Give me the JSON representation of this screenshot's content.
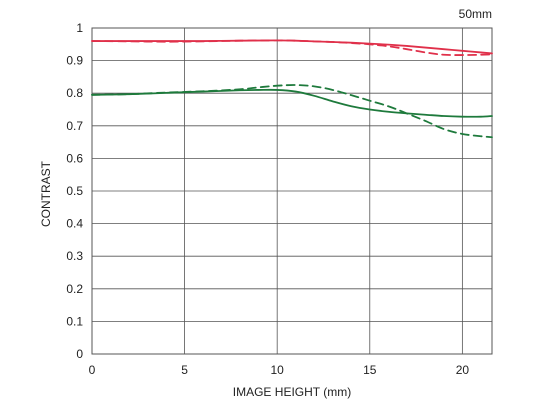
{
  "chart_data": {
    "type": "line",
    "title": "50mm",
    "xlabel": "IMAGE HEIGHT (mm)",
    "ylabel": "CONTRAST",
    "xlim": [
      0,
      21.6
    ],
    "ylim": [
      0,
      1
    ],
    "xticks": [
      0,
      5,
      10,
      15,
      20
    ],
    "yticks": [
      0,
      0.1,
      0.2,
      0.3,
      0.4,
      0.5,
      0.6,
      0.7,
      0.8,
      0.9,
      1
    ],
    "ytick_labels": [
      "0",
      "0.1",
      "0.2",
      "0.3",
      "0.4",
      "0.5",
      "0.6",
      "0.7",
      "0.8",
      "0.9",
      "1"
    ],
    "grid": true,
    "legend": "none",
    "series": [
      {
        "color": "#e0304a",
        "dash": "solid",
        "x": [
          0,
          2,
          4,
          6,
          8,
          10,
          11,
          12,
          13,
          14,
          15,
          16,
          17,
          18,
          19,
          20,
          21,
          21.6
        ],
        "y": [
          0.96,
          0.96,
          0.96,
          0.96,
          0.961,
          0.962,
          0.961,
          0.959,
          0.957,
          0.955,
          0.952,
          0.949,
          0.945,
          0.94,
          0.935,
          0.93,
          0.925,
          0.922
        ]
      },
      {
        "color": "#e0304a",
        "dash": "dashed",
        "x": [
          0,
          2,
          4,
          6,
          8,
          10,
          11,
          12,
          13,
          14,
          15,
          16,
          17,
          18,
          19,
          20,
          21,
          21.6
        ],
        "y": [
          0.96,
          0.959,
          0.958,
          0.959,
          0.961,
          0.962,
          0.961,
          0.959,
          0.957,
          0.954,
          0.95,
          0.944,
          0.935,
          0.925,
          0.918,
          0.917,
          0.918,
          0.919
        ]
      },
      {
        "color": "#1e7a3c",
        "dash": "solid",
        "x": [
          0,
          2,
          4,
          6,
          8,
          9,
          10,
          11,
          12,
          13,
          14,
          15,
          16,
          17,
          18,
          19,
          20,
          21,
          21.6
        ],
        "y": [
          0.795,
          0.797,
          0.801,
          0.805,
          0.809,
          0.81,
          0.81,
          0.805,
          0.792,
          0.775,
          0.76,
          0.75,
          0.743,
          0.738,
          0.734,
          0.73,
          0.728,
          0.728,
          0.73
        ]
      },
      {
        "color": "#1e7a3c",
        "dash": "dashed",
        "x": [
          0,
          2,
          4,
          6,
          8,
          9,
          10,
          11,
          12,
          13,
          14,
          15,
          16,
          17,
          18,
          19,
          20,
          21,
          21.6
        ],
        "y": [
          0.795,
          0.797,
          0.802,
          0.806,
          0.812,
          0.818,
          0.823,
          0.825,
          0.821,
          0.81,
          0.794,
          0.777,
          0.76,
          0.738,
          0.715,
          0.69,
          0.675,
          0.668,
          0.665
        ]
      }
    ]
  }
}
